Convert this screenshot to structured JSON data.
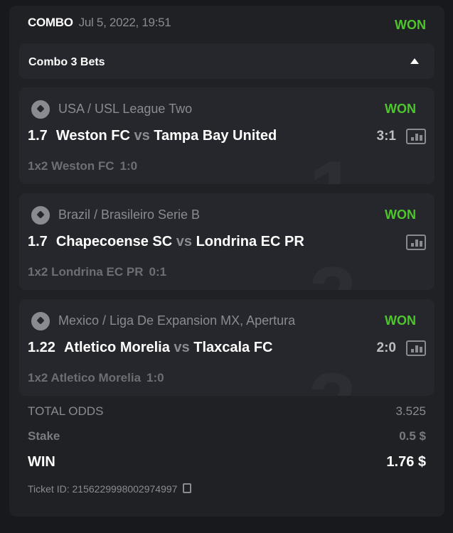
{
  "header": {
    "title": "COMBO",
    "date": "Jul 5, 2022, 19:51",
    "status": "WON"
  },
  "combo": {
    "title": "Combo 3 Bets",
    "toggle_icon": "caret-up-icon"
  },
  "bets": [
    {
      "number": "1",
      "league": "USA / USL League Two",
      "status": "WON",
      "odd": "1.7",
      "home": "Weston FC",
      "vs": "vs",
      "away": "Tampa Bay United",
      "score": "3:1",
      "market": "1x2 Weston FC",
      "pick_score": "1:0"
    },
    {
      "number": "2",
      "league": "Brazil / Brasileiro Serie B",
      "status": "WON",
      "odd": "1.7",
      "home": "Chapecoense SC",
      "vs": "vs",
      "away": "Londrina EC PR",
      "score": "",
      "market": "1x2 Londrina EC PR",
      "pick_score": "0:1"
    },
    {
      "number": "3",
      "league": "Mexico / Liga De Expansion MX, Apertura",
      "status": "WON",
      "odd": "1.22",
      "home": "Atletico Morelia",
      "vs": "vs",
      "away": "Tlaxcala FC",
      "score": "2:0",
      "market": "1x2 Atletico Morelia",
      "pick_score": "1:0"
    }
  ],
  "totals": {
    "total_odds_label": "TOTAL ODDS",
    "total_odds": "3.525",
    "stake_label": "Stake",
    "stake": "0.5 $",
    "win_label": "WIN",
    "win": "1.76 $",
    "ticket_label": "Ticket ID: 2156229998002974997"
  },
  "colors": {
    "won": "#4fc52d",
    "card": "#202125",
    "box": "#26272c"
  }
}
